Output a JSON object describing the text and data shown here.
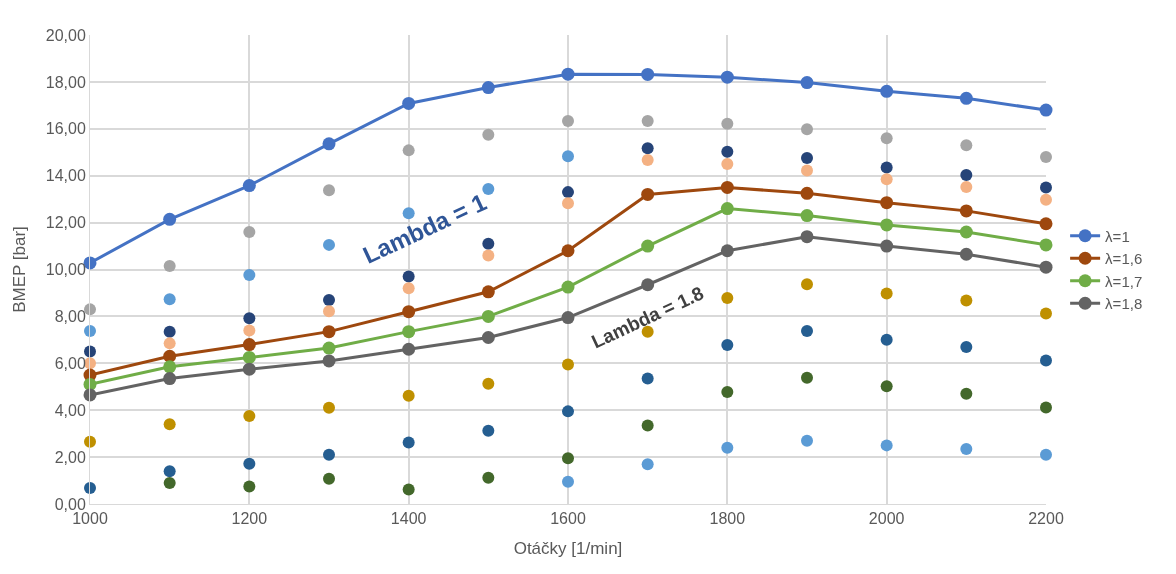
{
  "chart_data": {
    "type": "line",
    "xlabel": "Otáčky [1/min]",
    "ylabel": "BMEP [bar]",
    "x": [
      1000,
      1100,
      1200,
      1300,
      1400,
      1500,
      1600,
      1700,
      1800,
      1900,
      2000,
      2100,
      2200
    ],
    "xlim": [
      1000,
      2200
    ],
    "xticks": [
      1000,
      1200,
      1400,
      1600,
      1800,
      2000,
      2200
    ],
    "ylim": [
      0,
      20
    ],
    "yticks": [
      {
        "value": 0,
        "label": "0,00"
      },
      {
        "value": 2,
        "label": "2,00"
      },
      {
        "value": 4,
        "label": "4,00"
      },
      {
        "value": 6,
        "label": "6,00"
      },
      {
        "value": 8,
        "label": "8,00"
      },
      {
        "value": 10,
        "label": "10,00"
      },
      {
        "value": 12,
        "label": "12,00"
      },
      {
        "value": 14,
        "label": "14,00"
      },
      {
        "value": 16,
        "label": "16,00"
      },
      {
        "value": 18,
        "label": "18,00"
      },
      {
        "value": 20,
        "label": "20,00"
      }
    ],
    "grid": true,
    "legend": "right",
    "marker": "circle",
    "line_style": "solid",
    "series": [
      {
        "type": "scatter",
        "color": "#a5a5a5",
        "values": [
          8.3,
          10.15,
          11.6,
          13.38,
          15.08,
          15.75,
          16.33,
          16.33,
          16.22,
          15.98,
          15.6,
          15.3,
          14.8
        ]
      },
      {
        "type": "scatter",
        "color": "#5b9bd5",
        "values": [
          7.38,
          8.73,
          9.77,
          11.05,
          12.4,
          13.43,
          14.83,
          null,
          null,
          null,
          null,
          null,
          null
        ]
      },
      {
        "type": "scatter",
        "color": "#5b9bd5",
        "values": [
          null,
          null,
          null,
          null,
          null,
          null,
          0.95,
          1.7,
          2.4,
          2.7,
          2.5,
          2.35,
          2.1
        ]
      },
      {
        "type": "scatter",
        "color": "#264478",
        "values": [
          6.5,
          7.35,
          7.92,
          8.7,
          9.7,
          11.1,
          13.3,
          15.17,
          15.02,
          14.75,
          14.35,
          14.03,
          13.5
        ]
      },
      {
        "type": "scatter",
        "color": "#f4b183",
        "values": [
          6.0,
          6.85,
          7.4,
          8.22,
          9.2,
          10.6,
          12.83,
          14.67,
          14.5,
          14.22,
          13.85,
          13.52,
          12.97
        ]
      },
      {
        "type": "scatter",
        "color": "#bf9000",
        "values": [
          2.65,
          3.4,
          3.75,
          4.1,
          4.62,
          5.13,
          5.95,
          7.35,
          8.78,
          9.37,
          8.98,
          8.68,
          8.12
        ]
      },
      {
        "type": "scatter",
        "color": "#255e91",
        "values": [
          0.68,
          1.4,
          1.72,
          2.1,
          2.62,
          3.12,
          3.95,
          5.35,
          6.78,
          7.38,
          7.0,
          6.7,
          6.12
        ]
      },
      {
        "type": "scatter",
        "color": "#43682b",
        "values": [
          null,
          0.9,
          0.75,
          1.08,
          0.62,
          1.12,
          1.95,
          3.35,
          4.78,
          5.38,
          5.02,
          4.7,
          4.12
        ]
      },
      {
        "name": "λ=1",
        "color": "#4472c4",
        "values": [
          10.28,
          12.14,
          13.58,
          15.36,
          17.08,
          17.76,
          18.33,
          18.32,
          18.2,
          17.97,
          17.6,
          17.3,
          16.8
        ]
      },
      {
        "name": "λ=1,6",
        "color": "#9e480e",
        "values": [
          5.5,
          6.3,
          6.8,
          7.35,
          8.2,
          9.05,
          10.8,
          13.2,
          13.5,
          13.25,
          12.85,
          12.5,
          11.95
        ]
      },
      {
        "name": "λ=1,7",
        "color": "#70ad47",
        "values": [
          5.1,
          5.85,
          6.25,
          6.65,
          7.35,
          8.0,
          9.25,
          11.0,
          12.6,
          12.3,
          11.9,
          11.6,
          11.05
        ]
      },
      {
        "name": "λ=1,8",
        "color": "#636363",
        "values": [
          4.65,
          5.35,
          5.75,
          6.1,
          6.6,
          7.1,
          7.95,
          9.35,
          10.8,
          11.4,
          11.0,
          10.65,
          10.1
        ]
      }
    ],
    "annotations": [
      "Lambda = 1",
      "Lambda = 1.8"
    ]
  }
}
